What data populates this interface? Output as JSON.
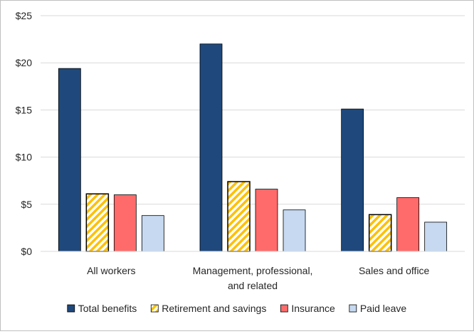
{
  "chart_data": {
    "type": "bar",
    "title": "",
    "xlabel": "",
    "ylabel": "",
    "ylim": [
      0,
      25
    ],
    "yticks": [
      0,
      5,
      10,
      15,
      20,
      25
    ],
    "ytick_labels": [
      "$0",
      "$5",
      "$10",
      "$15",
      "$20",
      "$25"
    ],
    "grid": true,
    "legend_position": "bottom",
    "categories": [
      [
        "All workers"
      ],
      [
        "Management, professional,",
        "and related"
      ],
      [
        "Sales and office"
      ]
    ],
    "series": [
      {
        "name": "Total benefits",
        "color": "#1f497d",
        "pattern": "solid",
        "values": [
          19.4,
          22.0,
          15.1
        ]
      },
      {
        "name": "Retirement and savings",
        "color": "#ffc000",
        "pattern": "hatch",
        "values": [
          6.1,
          7.4,
          3.9
        ]
      },
      {
        "name": "Insurance",
        "color": "#ff6b6b",
        "pattern": "solid",
        "values": [
          6.0,
          6.6,
          5.7
        ]
      },
      {
        "name": "Paid leave",
        "color": "#c6d9f1",
        "pattern": "solid",
        "values": [
          3.8,
          4.4,
          3.1
        ]
      }
    ]
  }
}
